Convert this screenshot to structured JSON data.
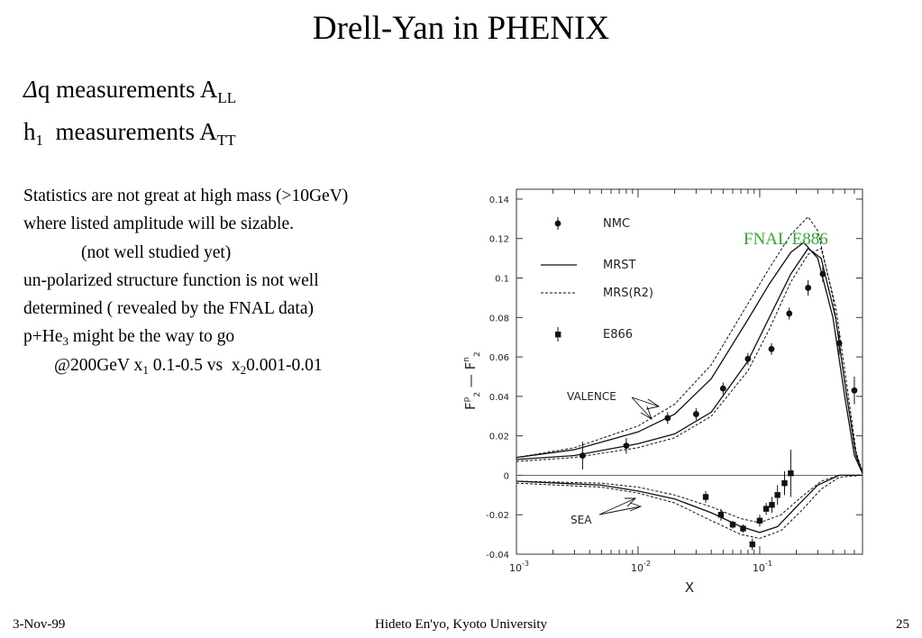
{
  "slide": {
    "title": "Drell-Yan  in PHENIX",
    "bullet1": {
      "delta": "Δ",
      "text": "q measurements A",
      "sub": "LL"
    },
    "bullet2": {
      "main": "h",
      "sub1": "1",
      "text": "  measurements A",
      "sub2": "TT"
    },
    "lines": {
      "l1": "Statistics are not great at high mass (>10GeV)",
      "l2": "where listed amplitude will be sizable.",
      "l3": "(not well studied yet)",
      "l4": "un-polarized structure function is not well",
      "l5": "determined ( revealed by the  FNAL data)",
      "l6a": "p+He",
      "l6sub": "3",
      "l6b": " might be the way to go",
      "l7a": "@200GeV x",
      "l7sub1": "1",
      "l7b": " 0.1-0.5 vs  x",
      "l7sub2": "2",
      "l7c": "0.001-0.01"
    },
    "annotation": "FNAL E886",
    "footer": {
      "date": "3-Nov-99",
      "author": "Hideto En'yo, Kyoto University",
      "page": "25"
    }
  },
  "chart_data": {
    "type": "scatter",
    "xlabel": "X",
    "ylabel_main": "F",
    "ylabel_sup1": "p",
    "ylabel_sub1": "2",
    "ylabel_minus": "—",
    "ylabel_sup2": "n",
    "ylabel_sub2": "2",
    "xscale": "log",
    "xlim": [
      0.001,
      0.7
    ],
    "ylim": [
      -0.04,
      0.145
    ],
    "yticks": [
      "0.14",
      "0.12",
      "0.1",
      "0.08",
      "0.06",
      "0.04",
      "0.02",
      "0",
      "-0.02",
      "-0.04"
    ],
    "xticks": [
      {
        "base": "10",
        "exp": "-3"
      },
      {
        "base": "10",
        "exp": "-2"
      },
      {
        "base": "10",
        "exp": "-1"
      }
    ],
    "legend": [
      "NMC",
      "MRST",
      "MRS(R2)",
      "E866"
    ],
    "curve_labels": {
      "valence": "VALENCE",
      "sea": "SEA"
    },
    "series": [
      {
        "name": "NMC",
        "marker": "circle",
        "points": [
          [
            0.0035,
            0.01
          ],
          [
            0.008,
            0.015
          ],
          [
            0.0175,
            0.029
          ],
          [
            0.03,
            0.031
          ],
          [
            0.05,
            0.044
          ],
          [
            0.08,
            0.059
          ],
          [
            0.125,
            0.064
          ],
          [
            0.175,
            0.082
          ],
          [
            0.25,
            0.095
          ],
          [
            0.33,
            0.102
          ],
          [
            0.45,
            0.067
          ],
          [
            0.6,
            0.043
          ]
        ],
        "errors": [
          0.007,
          0.004,
          0.003,
          0.003,
          0.003,
          0.003,
          0.003,
          0.003,
          0.004,
          0.004,
          0.006,
          0.007
        ]
      },
      {
        "name": "E866",
        "marker": "square",
        "points": [
          [
            0.036,
            -0.011
          ],
          [
            0.048,
            -0.02
          ],
          [
            0.06,
            -0.025
          ],
          [
            0.073,
            -0.027
          ],
          [
            0.087,
            -0.035
          ],
          [
            0.1,
            -0.023
          ],
          [
            0.113,
            -0.017
          ],
          [
            0.126,
            -0.015
          ],
          [
            0.14,
            -0.01
          ],
          [
            0.16,
            -0.004
          ],
          [
            0.18,
            0.001
          ]
        ],
        "errors": [
          0.003,
          0.003,
          0.002,
          0.002,
          0.003,
          0.003,
          0.003,
          0.004,
          0.005,
          0.006,
          0.012
        ]
      },
      {
        "name": "MRST",
        "kind": "valence",
        "style": "solid",
        "points": [
          [
            0.001,
            0.009
          ],
          [
            0.003,
            0.013
          ],
          [
            0.01,
            0.022
          ],
          [
            0.02,
            0.031
          ],
          [
            0.04,
            0.049
          ],
          [
            0.08,
            0.079
          ],
          [
            0.12,
            0.097
          ],
          [
            0.18,
            0.113
          ],
          [
            0.23,
            0.118
          ],
          [
            0.3,
            0.11
          ],
          [
            0.4,
            0.08
          ],
          [
            0.5,
            0.04
          ],
          [
            0.6,
            0.01
          ],
          [
            0.7,
            0.001
          ]
        ]
      },
      {
        "name": "MRST",
        "kind": "valence",
        "style": "solid",
        "points": [
          [
            0.001,
            0.008
          ],
          [
            0.003,
            0.01
          ],
          [
            0.01,
            0.016
          ],
          [
            0.02,
            0.021
          ],
          [
            0.04,
            0.032
          ],
          [
            0.08,
            0.058
          ],
          [
            0.12,
            0.08
          ],
          [
            0.18,
            0.102
          ],
          [
            0.25,
            0.115
          ],
          [
            0.32,
            0.11
          ],
          [
            0.42,
            0.08
          ],
          [
            0.52,
            0.04
          ],
          [
            0.62,
            0.01
          ],
          [
            0.7,
            0.001
          ]
        ]
      },
      {
        "name": "MRS(R2)",
        "kind": "valence",
        "style": "dashed",
        "points": [
          [
            0.001,
            0.009
          ],
          [
            0.003,
            0.014
          ],
          [
            0.01,
            0.025
          ],
          [
            0.02,
            0.036
          ],
          [
            0.04,
            0.056
          ],
          [
            0.08,
            0.087
          ],
          [
            0.12,
            0.105
          ],
          [
            0.18,
            0.122
          ],
          [
            0.25,
            0.131
          ],
          [
            0.3,
            0.124
          ],
          [
            0.4,
            0.09
          ],
          [
            0.5,
            0.048
          ],
          [
            0.6,
            0.014
          ],
          [
            0.7,
            0.002
          ]
        ]
      },
      {
        "name": "MRS(R2)",
        "kind": "valence",
        "style": "dashed",
        "points": [
          [
            0.001,
            0.007
          ],
          [
            0.003,
            0.009
          ],
          [
            0.01,
            0.014
          ],
          [
            0.02,
            0.019
          ],
          [
            0.04,
            0.03
          ],
          [
            0.08,
            0.053
          ],
          [
            0.12,
            0.074
          ],
          [
            0.18,
            0.098
          ],
          [
            0.25,
            0.112
          ],
          [
            0.32,
            0.115
          ],
          [
            0.42,
            0.086
          ],
          [
            0.52,
            0.046
          ],
          [
            0.62,
            0.012
          ],
          [
            0.7,
            0.001
          ]
        ]
      },
      {
        "name": "MRST",
        "kind": "sea",
        "style": "solid",
        "points": [
          [
            0.001,
            -0.003
          ],
          [
            0.005,
            -0.005
          ],
          [
            0.01,
            -0.008
          ],
          [
            0.02,
            -0.012
          ],
          [
            0.04,
            -0.019
          ],
          [
            0.07,
            -0.026
          ],
          [
            0.1,
            -0.029
          ],
          [
            0.14,
            -0.026
          ],
          [
            0.2,
            -0.016
          ],
          [
            0.3,
            -0.005
          ],
          [
            0.45,
            0.0
          ],
          [
            0.7,
            0.0
          ]
        ]
      },
      {
        "name": "MRS(R2)",
        "kind": "sea",
        "style": "dashed",
        "points": [
          [
            0.001,
            -0.004
          ],
          [
            0.005,
            -0.006
          ],
          [
            0.01,
            -0.009
          ],
          [
            0.02,
            -0.014
          ],
          [
            0.04,
            -0.023
          ],
          [
            0.07,
            -0.03
          ],
          [
            0.1,
            -0.032
          ],
          [
            0.15,
            -0.028
          ],
          [
            0.22,
            -0.018
          ],
          [
            0.32,
            -0.007
          ],
          [
            0.45,
            -0.001
          ],
          [
            0.7,
            0.0
          ]
        ]
      },
      {
        "name": "MRS(R2)",
        "kind": "sea",
        "style": "dashed",
        "points": [
          [
            0.001,
            -0.003
          ],
          [
            0.005,
            -0.004
          ],
          [
            0.01,
            -0.006
          ],
          [
            0.02,
            -0.01
          ],
          [
            0.04,
            -0.016
          ],
          [
            0.07,
            -0.022
          ],
          [
            0.1,
            -0.024
          ],
          [
            0.15,
            -0.02
          ],
          [
            0.22,
            -0.011
          ],
          [
            0.32,
            -0.003
          ],
          [
            0.45,
            0.0
          ],
          [
            0.7,
            0.0
          ]
        ]
      }
    ]
  }
}
